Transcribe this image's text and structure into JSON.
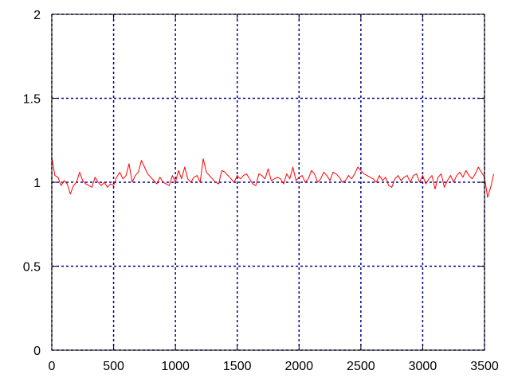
{
  "chart_data": {
    "type": "line",
    "title": "",
    "xlabel": "",
    "ylabel": "",
    "xlim": [
      0,
      3500
    ],
    "ylim": [
      0,
      2
    ],
    "x_ticks": [
      "0",
      "500",
      "1000",
      "1500",
      "2000",
      "2500",
      "3000",
      "3500"
    ],
    "y_ticks": [
      "0",
      "0.5",
      "1",
      "1.5",
      "2"
    ],
    "grid": true,
    "grid_color": "#00008b",
    "axis_color": "#000000",
    "series": [
      {
        "color": "#ff0000",
        "x_step": 25,
        "values": [
          1.15,
          1.04,
          1.03,
          0.98,
          1.01,
          0.99,
          0.93,
          0.98,
          1.0,
          1.06,
          1.01,
          0.99,
          0.98,
          0.97,
          1.03,
          1.0,
          0.98,
          1.0,
          0.97,
          0.99,
          0.98,
          1.03,
          1.06,
          1.02,
          1.04,
          1.11,
          1.0,
          1.04,
          1.06,
          1.13,
          1.09,
          1.05,
          1.03,
          1.01,
          0.99,
          1.03,
          1.0,
          0.99,
          0.98,
          1.04,
          1.0,
          1.07,
          1.02,
          1.09,
          1.02,
          1.0,
          1.03,
          1.04,
          1.0,
          1.14,
          1.06,
          1.04,
          1.02,
          1.0,
          0.99,
          1.07,
          1.06,
          1.04,
          1.02,
          1.0,
          1.04,
          1.02,
          1.04,
          1.05,
          1.02,
          0.99,
          0.98,
          1.05,
          1.04,
          1.02,
          1.08,
          1.01,
          1.02,
          1.03,
          1.02,
          0.99,
          1.05,
          1.02,
          1.09,
          1.01,
          1.03,
          1.04,
          1.0,
          1.02,
          1.07,
          1.05,
          1.0,
          1.02,
          1.06,
          1.04,
          1.01,
          1.06,
          1.05,
          1.03,
          1.0,
          1.01,
          1.04,
          1.02,
          1.05,
          1.09,
          1.07,
          1.05,
          1.04,
          1.03,
          1.02,
          1.0,
          1.04,
          1.01,
          1.03,
          0.98,
          0.97,
          1.02,
          1.04,
          1.01,
          1.03,
          1.04,
          1.0,
          1.04,
          1.05,
          1.0,
          1.04,
          0.99,
          1.02,
          1.04,
          0.96,
          1.03,
          1.05,
          0.97,
          1.01,
          1.04,
          1.0,
          1.04,
          1.06,
          1.03,
          1.07,
          1.04,
          1.02,
          1.05,
          1.09,
          1.06,
          1.03,
          0.91,
          0.97,
          1.05
        ]
      }
    ]
  }
}
